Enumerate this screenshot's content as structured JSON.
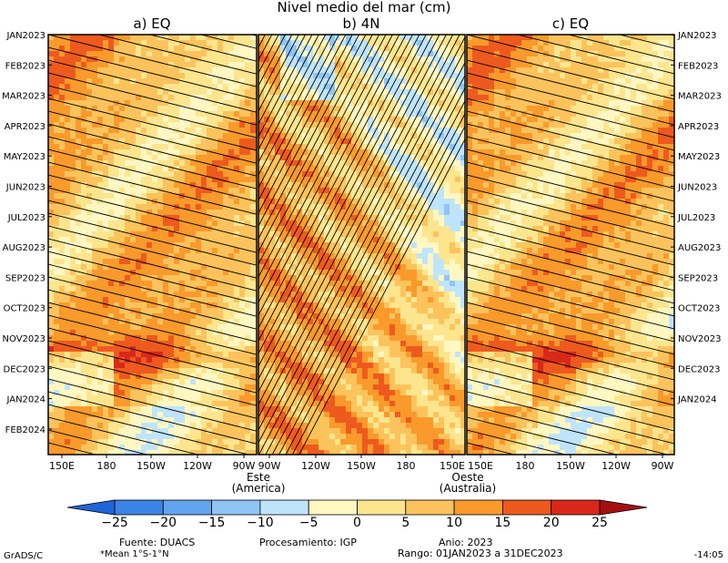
{
  "title": "Nivel medio del mar (cm)",
  "chart_data": {
    "type": "heatmap",
    "title": "Nivel medio del mar (cm)",
    "units": "cm",
    "panels": [
      {
        "label": "a) EQ",
        "x_ticks": [
          "150E",
          "180",
          "150W",
          "120W",
          "90W"
        ],
        "x_range": [
          "150E",
          "90W"
        ]
      },
      {
        "label": "b) 4N",
        "x_ticks": [
          "90W",
          "120W",
          "150W",
          "180",
          "150E"
        ],
        "x_range": [
          "90W",
          "150E"
        ]
      },
      {
        "label": "c) EQ",
        "x_ticks": [
          "150E",
          "180",
          "150W",
          "120W",
          "90W"
        ],
        "x_range": [
          "150E",
          "90W"
        ]
      }
    ],
    "y_ticks": [
      "JAN2023",
      "FEB2023",
      "MAR2023",
      "APR2023",
      "MAY2023",
      "JUN2023",
      "JUL2023",
      "AUG2023",
      "SEP2023",
      "OCT2023",
      "NOV2023",
      "DEC2023",
      "JAN2024",
      "FEB2024"
    ],
    "colorbar": {
      "levels": [
        -25,
        -20,
        -15,
        -10,
        -5,
        0,
        5,
        10,
        15,
        20,
        25
      ],
      "labels": [
        "−25",
        "−20",
        "−15",
        "−10",
        "−5",
        "0",
        "5",
        "10",
        "15",
        "20",
        "25"
      ],
      "colors": [
        "#1f64d8",
        "#3b84e6",
        "#62a4ee",
        "#8fc4f4",
        "#bfe4fa",
        "#fff7c2",
        "#fde58e",
        "#fcc35c",
        "#f99a2b",
        "#ee5a1e",
        "#d8281a",
        "#a60f10"
      ]
    },
    "sample_field": {
      "months": [
        "JAN2023",
        "MAR2023",
        "MAY2023",
        "JUL2023",
        "SEP2023",
        "NOV2023",
        "DEC2023",
        "FEB2024"
      ],
      "eq_mean_cm": [
        12,
        10,
        14,
        14,
        9,
        16,
        18,
        6
      ],
      "n4_mean_cm": [
        8,
        9,
        10,
        10,
        8,
        6,
        4,
        6
      ]
    }
  },
  "labels": {
    "este": "Este",
    "america": "(America)",
    "oeste": "Oeste",
    "australia": "(Australia)"
  },
  "footer": {
    "grads": "GrADS/C",
    "fuente": "Fuente: DUACS",
    "mean": "*Mean 1°S-1°N",
    "procesamiento": "Procesamiento: IGP",
    "anio": "Anio: 2023",
    "rango": "Rango: 01JAN2023 a 31DEC2023",
    "time": "-14:05"
  }
}
